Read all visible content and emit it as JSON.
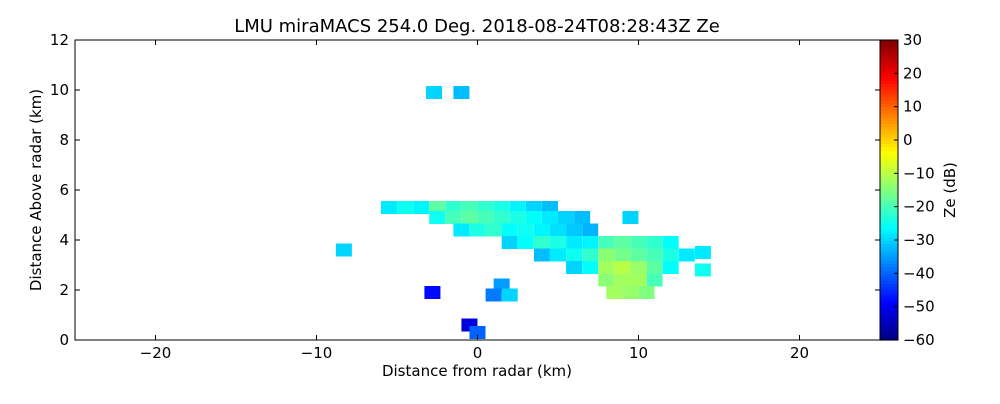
{
  "chart_data": {
    "type": "heatmap",
    "title": "LMU miraMACS 254.0 Deg. 2018-08-24T08:28:43Z  Ze",
    "x_label": "Distance from radar (km)",
    "y_label": "Distance Above radar  (km)",
    "colorbar_label": "Ze (dB)",
    "colormap": "jet",
    "xlim": [
      -25,
      25
    ],
    "xticks": [
      {
        "value": -20,
        "label": "−20"
      },
      {
        "value": -10,
        "label": "−10"
      },
      0,
      10,
      20
    ],
    "ylim": [
      0,
      12
    ],
    "yticks": [
      0,
      2,
      4,
      6,
      8,
      10,
      12
    ],
    "clim": [
      -60,
      30
    ],
    "cticks": [
      {
        "value": -60,
        "label": "−60"
      },
      {
        "value": -50,
        "label": "−50"
      },
      {
        "value": -40,
        "label": "−40"
      },
      {
        "value": -30,
        "label": "−30"
      },
      {
        "value": -20,
        "label": "−20"
      },
      {
        "value": -10,
        "label": "−10"
      },
      0,
      10,
      20,
      30
    ],
    "x": [
      -5.5,
      -4.5,
      -3.5,
      -2.5,
      -1.5,
      -0.5,
      0.5,
      1.5,
      2.5,
      3.5,
      4.5,
      -2.5,
      -1.5,
      -0.5,
      0.5,
      1.5,
      2.5,
      3.5,
      4.5,
      5.5,
      6.5,
      9.5,
      -1,
      0,
      1,
      2,
      3,
      4,
      5,
      6,
      7,
      2,
      3,
      4,
      5,
      6,
      7,
      8,
      9,
      10,
      11,
      12,
      4,
      5,
      6,
      7,
      8,
      9,
      10,
      11,
      12,
      13,
      6,
      7,
      8,
      9,
      10,
      11,
      12,
      8,
      9,
      10,
      11,
      8.5,
      9.5,
      10.5,
      14,
      14,
      1.5,
      2,
      1,
      -0.5,
      -8.3,
      -2.7,
      -1,
      -2.8,
      0
    ],
    "y": [
      5.3,
      5.3,
      5.3,
      5.3,
      5.3,
      5.3,
      5.3,
      5.3,
      5.3,
      5.3,
      5.3,
      4.9,
      4.9,
      4.9,
      4.9,
      4.9,
      4.9,
      4.9,
      4.9,
      4.9,
      4.9,
      4.9,
      4.4,
      4.4,
      4.4,
      4.4,
      4.4,
      4.4,
      4.4,
      4.4,
      4.4,
      3.9,
      3.9,
      3.9,
      3.9,
      3.9,
      3.9,
      3.9,
      3.9,
      3.9,
      3.9,
      3.9,
      3.4,
      3.4,
      3.4,
      3.4,
      3.4,
      3.4,
      3.4,
      3.4,
      3.4,
      3.4,
      2.9,
      2.9,
      2.9,
      2.9,
      2.9,
      2.9,
      2.9,
      2.4,
      2.4,
      2.4,
      2.4,
      1.9,
      1.9,
      1.9,
      3.5,
      2.8,
      2.2,
      1.8,
      1.8,
      0.6,
      3.6,
      9.9,
      9.9,
      1.9,
      0.3
    ],
    "values": [
      -28,
      -25,
      -27,
      -18,
      -22,
      -20,
      -22,
      -24,
      -27,
      -30,
      -32,
      -25,
      -20,
      -18,
      -20,
      -22,
      -24,
      -26,
      -28,
      -30,
      -32,
      -30,
      -28,
      -24,
      -22,
      -26,
      -25,
      -27,
      -29,
      -31,
      -33,
      -30,
      -26,
      -22,
      -24,
      -28,
      -27,
      -20,
      -18,
      -20,
      -22,
      -26,
      -32,
      -28,
      -25,
      -22,
      -14,
      -16,
      -18,
      -20,
      -24,
      -28,
      -30,
      -26,
      -12,
      -10,
      -13,
      -18,
      -26,
      -14,
      -12,
      -12,
      -20,
      -12,
      -13,
      -15,
      -28,
      -25,
      -35,
      -30,
      -38,
      -52,
      -30,
      -30,
      -32,
      -48,
      -40
    ]
  }
}
